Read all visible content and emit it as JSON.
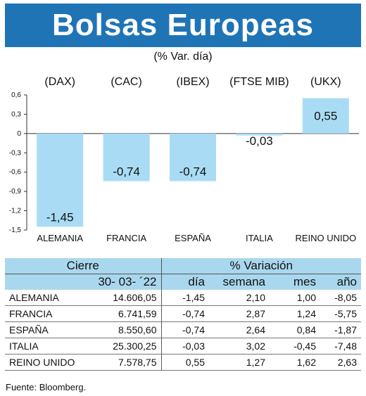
{
  "title": "Bolsas Europeas",
  "subtitle": "(% Var. día)",
  "chart_data": {
    "type": "bar",
    "categories": [
      "ALEMANIA",
      "FRANCIA",
      "ESPAÑA",
      "ITALIA",
      "REINO UNIDO"
    ],
    "index_labels": [
      "(DAX)",
      "(CAC)",
      "(IBEX)",
      "(FTSE MIB)",
      "(UKX)"
    ],
    "values": [
      -1.45,
      -0.74,
      -0.74,
      -0.03,
      0.55
    ],
    "value_labels": [
      "-1,45",
      "-0,74",
      "-0,74",
      "-0,03",
      "0,55"
    ],
    "ylim": [
      -1.5,
      0.6
    ],
    "yticks": [
      0.6,
      0.3,
      0,
      -0.3,
      -0.6,
      -0.9,
      -1.2,
      -1.5
    ],
    "ytick_labels": [
      "0,6",
      "0,3",
      "0",
      "-0,3",
      "-0,6",
      "-0,9",
      "-1,2",
      "-1,5"
    ],
    "bar_color": "#a9dcf4",
    "grid": false
  },
  "table": {
    "group_headers": {
      "cierre": "Cierre",
      "variacion": "% Variación"
    },
    "col_headers": {
      "date": "30- 03- ´22",
      "dia": "día",
      "semana": "semana",
      "mes": "mes",
      "ano": "año"
    },
    "rows": [
      {
        "name": "ALEMANIA",
        "cierre": "14.606,05",
        "dia": "-1,45",
        "semana": "2,10",
        "mes": "1,00",
        "ano": "-8,05"
      },
      {
        "name": "FRANCIA",
        "cierre": "6.741,59",
        "dia": "-0,74",
        "semana": "2,87",
        "mes": "1,24",
        "ano": "-5,75"
      },
      {
        "name": "ESPAÑA",
        "cierre": "8.550,60",
        "dia": "-0,74",
        "semana": "2,64",
        "mes": "0,84",
        "ano": "-1,87"
      },
      {
        "name": "ITALIA",
        "cierre": "25.300,25",
        "dia": "-0,03",
        "semana": "3,02",
        "mes": "-0,45",
        "ano": "-7,48"
      },
      {
        "name": "REINO UNIDO",
        "cierre": "7.578,75",
        "dia": "0,55",
        "semana": "1,27",
        "mes": "1,62",
        "ano": "2,63"
      }
    ],
    "header_color": "#a9d7ee"
  },
  "source": "Fuente: Bloomberg.",
  "colors": {
    "title_bg": "#1f74b6"
  }
}
